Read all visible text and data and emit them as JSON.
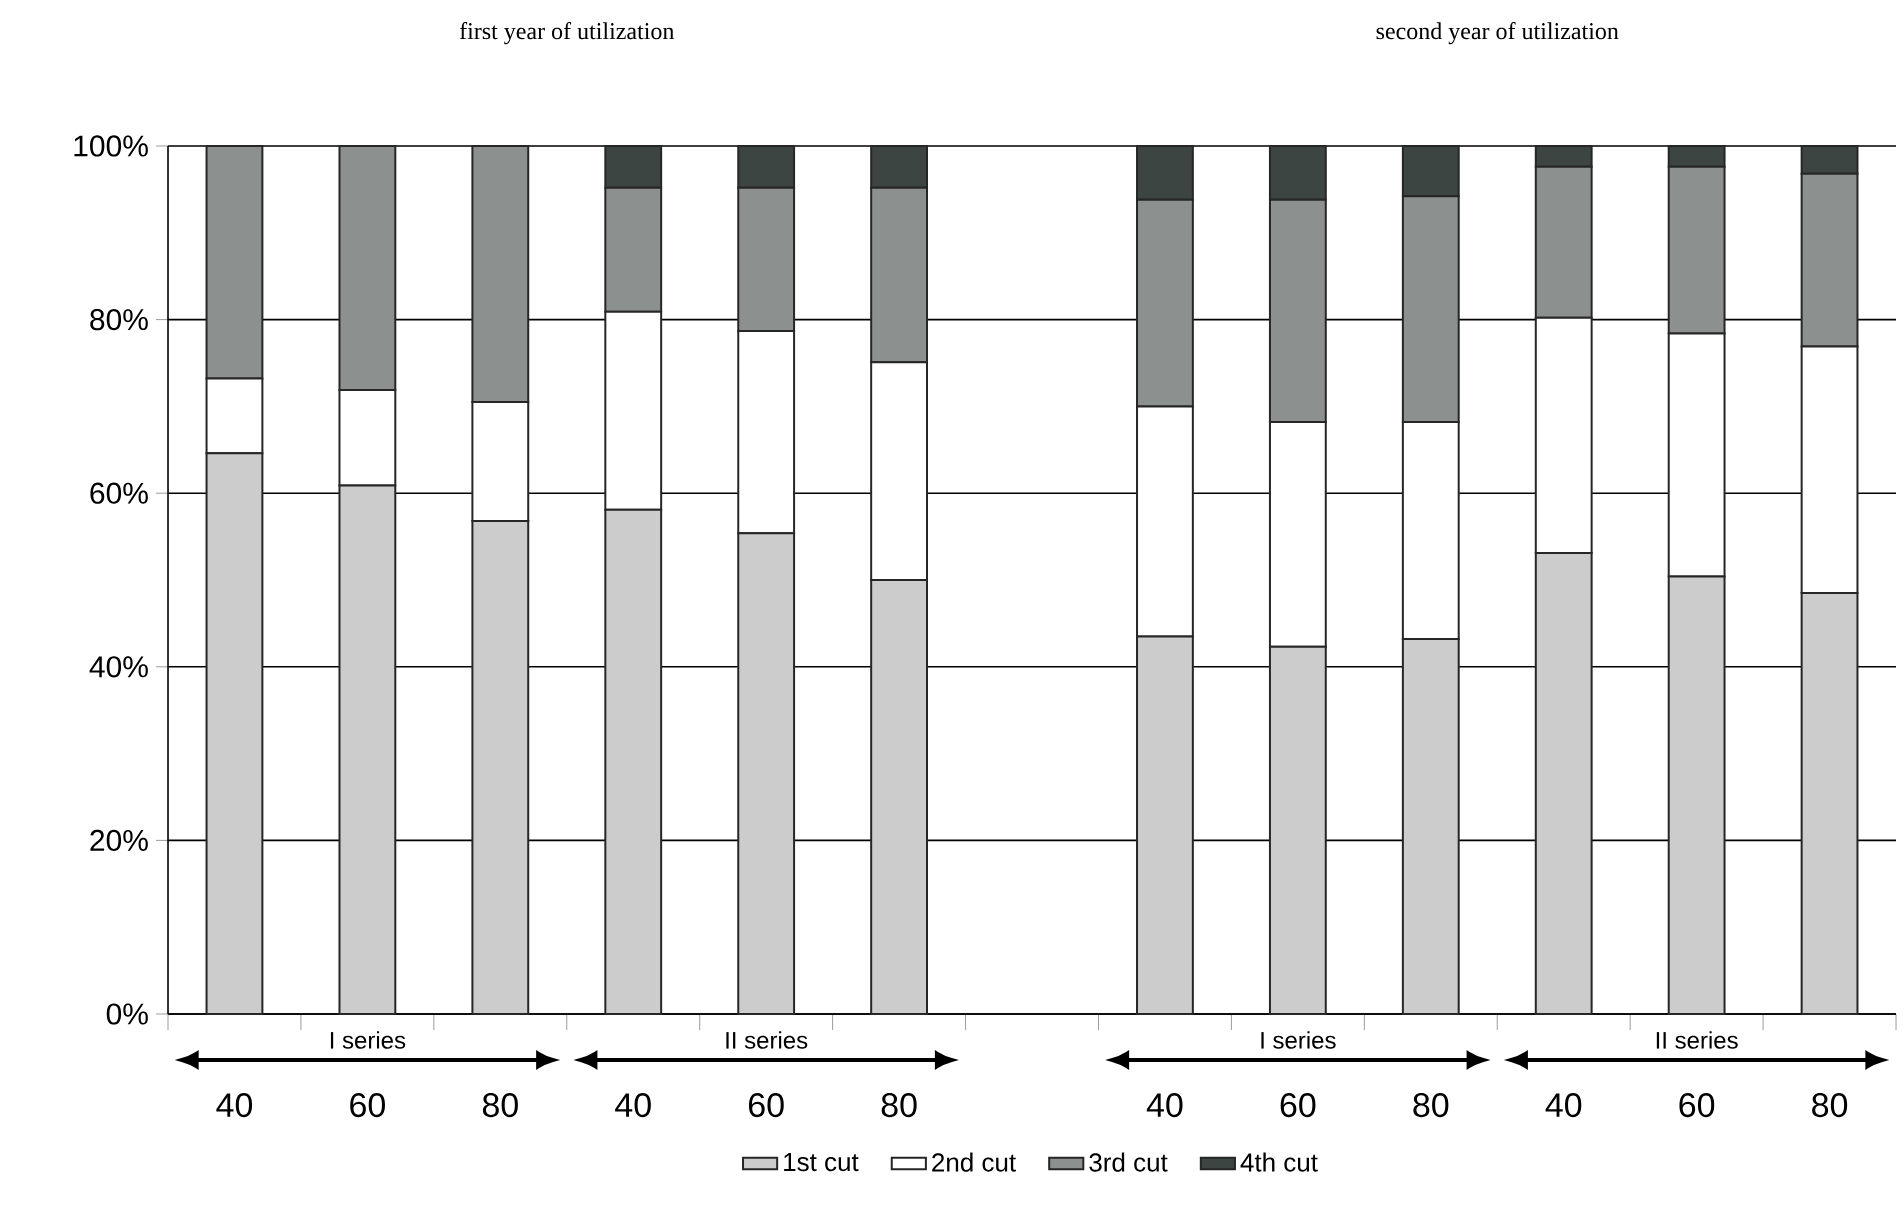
{
  "chart_data": {
    "type": "bar",
    "stacked": true,
    "categories": [
      "40",
      "60",
      "80",
      "40",
      "60",
      "80",
      null,
      "40",
      "60",
      "80",
      "40",
      "60",
      "80"
    ],
    "series": [
      {
        "name": "1st cut",
        "color": "#cccccc",
        "values": [
          64.6,
          60.9,
          56.8,
          58.1,
          55.4,
          50.0,
          null,
          43.5,
          42.3,
          43.2,
          53.1,
          50.4,
          48.5
        ]
      },
      {
        "name": "2nd cut",
        "color": "#ffffff",
        "values": [
          8.6,
          11.0,
          13.7,
          22.8,
          23.3,
          25.1,
          null,
          26.5,
          25.9,
          25.0,
          27.1,
          28.0,
          28.4
        ]
      },
      {
        "name": "3rd cut",
        "color": "#8c9190",
        "values": [
          26.8,
          28.1,
          29.5,
          14.3,
          16.5,
          20.1,
          null,
          23.8,
          25.6,
          26.0,
          17.4,
          19.2,
          19.9
        ]
      },
      {
        "name": "4th cut",
        "color": "#3d4543",
        "values": [
          0,
          0,
          0,
          4.8,
          4.8,
          4.8,
          null,
          6.2,
          6.2,
          5.8,
          2.4,
          2.4,
          3.2
        ]
      }
    ],
    "ylim": [
      0,
      100
    ],
    "yticks": [
      {
        "value": 0,
        "label": "0%"
      },
      {
        "value": 20,
        "label": "20%"
      },
      {
        "value": 40,
        "label": "40%"
      },
      {
        "value": 60,
        "label": "60%"
      },
      {
        "value": 80,
        "label": "80%"
      },
      {
        "value": 100,
        "label": "100%"
      }
    ],
    "grid": "y",
    "legend": "bottom",
    "annotations": [
      "first year of utilization",
      "second year of utilization",
      "I series",
      "II series",
      "I series",
      "II series"
    ]
  }
}
